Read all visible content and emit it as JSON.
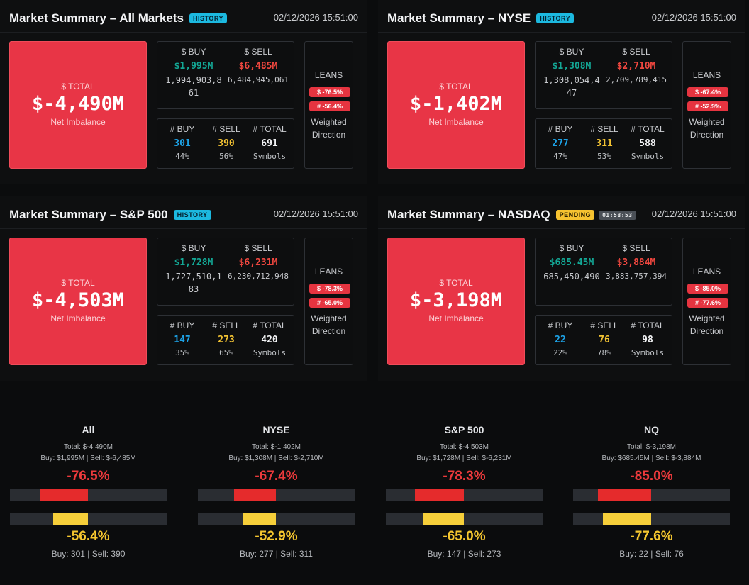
{
  "timestamp": "02/12/2026 15:51:00",
  "panels": [
    {
      "title": "Market Summary – All Markets",
      "badge": "HISTORY",
      "total_label": "$ TOTAL",
      "total_value": "$-4,490M",
      "total_sub": "Net Imbalance",
      "buy_label": "$ BUY",
      "sell_label": "$ SELL",
      "buy_amt": "$1,995M",
      "sell_amt": "$6,485M",
      "buy_raw": "1,994,903,861",
      "sell_raw": "6,484,945,061",
      "cnt_buy_label": "# BUY",
      "cnt_sell_label": "# SELL",
      "cnt_total_label": "# TOTAL",
      "cnt_buy": "301",
      "cnt_sell": "390",
      "cnt_total": "691",
      "cnt_buy_pct": "44%",
      "cnt_sell_pct": "56%",
      "cnt_total_sub": "Symbols",
      "leans_title": "LEANS",
      "leans_dollar": "$ -76.5%",
      "leans_count": "# -56.4%",
      "leans_foot_1": "Weighted",
      "leans_foot_2": "Direction"
    },
    {
      "title": "Market Summary – NYSE",
      "badge": "HISTORY",
      "total_label": "$ TOTAL",
      "total_value": "$-1,402M",
      "total_sub": "Net Imbalance",
      "buy_label": "$ BUY",
      "sell_label": "$ SELL",
      "buy_amt": "$1,308M",
      "sell_amt": "$2,710M",
      "buy_raw": "1,308,054,447",
      "sell_raw": "2,709,789,415",
      "cnt_buy_label": "# BUY",
      "cnt_sell_label": "# SELL",
      "cnt_total_label": "# TOTAL",
      "cnt_buy": "277",
      "cnt_sell": "311",
      "cnt_total": "588",
      "cnt_buy_pct": "47%",
      "cnt_sell_pct": "53%",
      "cnt_total_sub": "Symbols",
      "leans_title": "LEANS",
      "leans_dollar": "$ -67.4%",
      "leans_count": "# -52.9%",
      "leans_foot_1": "Weighted",
      "leans_foot_2": "Direction"
    },
    {
      "title": "Market Summary – S&P 500",
      "badge": "HISTORY",
      "total_label": "$ TOTAL",
      "total_value": "$-4,503M",
      "total_sub": "Net Imbalance",
      "buy_label": "$ BUY",
      "sell_label": "$ SELL",
      "buy_amt": "$1,728M",
      "sell_amt": "$6,231M",
      "buy_raw": "1,727,510,183",
      "sell_raw": "6,230,712,948",
      "cnt_buy_label": "# BUY",
      "cnt_sell_label": "# SELL",
      "cnt_total_label": "# TOTAL",
      "cnt_buy": "147",
      "cnt_sell": "273",
      "cnt_total": "420",
      "cnt_buy_pct": "35%",
      "cnt_sell_pct": "65%",
      "cnt_total_sub": "Symbols",
      "leans_title": "LEANS",
      "leans_dollar": "$ -78.3%",
      "leans_count": "# -65.0%",
      "leans_foot_1": "Weighted",
      "leans_foot_2": "Direction"
    },
    {
      "title": "Market Summary – NASDAQ",
      "badge": "PENDING",
      "timer": "01:58:53",
      "total_label": "$ TOTAL",
      "total_value": "$-3,198M",
      "total_sub": "Net Imbalance",
      "buy_label": "$ BUY",
      "sell_label": "$ SELL",
      "buy_amt": "$685.45M",
      "sell_amt": "$3,884M",
      "buy_raw": "685,450,490",
      "sell_raw": "3,883,757,394",
      "cnt_buy_label": "# BUY",
      "cnt_sell_label": "# SELL",
      "cnt_total_label": "# TOTAL",
      "cnt_buy": "22",
      "cnt_sell": "76",
      "cnt_total": "98",
      "cnt_buy_pct": "22%",
      "cnt_sell_pct": "78%",
      "cnt_total_sub": "Symbols",
      "leans_title": "LEANS",
      "leans_dollar": "$ -85.0%",
      "leans_count": "# -77.6%",
      "leans_foot_1": "Weighted",
      "leans_foot_2": "Direction"
    }
  ],
  "summaries": [
    {
      "title": "All",
      "total": "Total: $-4,490M",
      "buysell": "Buy: $1,995M | Sell: $-6,485M",
      "dollar_pct": "-76.5%",
      "dollar_value": -76.5,
      "count_value": -56.4,
      "count_pct": "-56.4%",
      "counts": "Buy: 301 | Sell: 390"
    },
    {
      "title": "NYSE",
      "total": "Total: $-1,402M",
      "buysell": "Buy: $1,308M | Sell: $-2,710M",
      "dollar_pct": "-67.4%",
      "dollar_value": -67.4,
      "count_value": -52.9,
      "count_pct": "-52.9%",
      "counts": "Buy: 277 | Sell: 311"
    },
    {
      "title": "S&P 500",
      "total": "Total: $-4,503M",
      "buysell": "Buy: $1,728M | Sell: $-6,231M",
      "dollar_pct": "-78.3%",
      "dollar_value": -78.3,
      "count_value": -65.0,
      "count_pct": "-65.0%",
      "counts": "Buy: 147 | Sell: 273"
    },
    {
      "title": "NQ",
      "total": "Total: $-3,198M",
      "buysell": "Buy: $685.45M | Sell: $-3,884M",
      "dollar_pct": "-85.0%",
      "dollar_value": -85.0,
      "count_value": -77.6,
      "count_pct": "-77.6%",
      "counts": "Buy: 22 | Sell: 76"
    }
  ],
  "colors": {
    "total_bg": "#e83546",
    "buy": "#13a896",
    "sell": "#f0473f",
    "count_buy": "#1da2e6",
    "count_sell": "#f3c333",
    "bar_red": "#e52b2c",
    "bar_yellow": "#f6cf3a"
  }
}
